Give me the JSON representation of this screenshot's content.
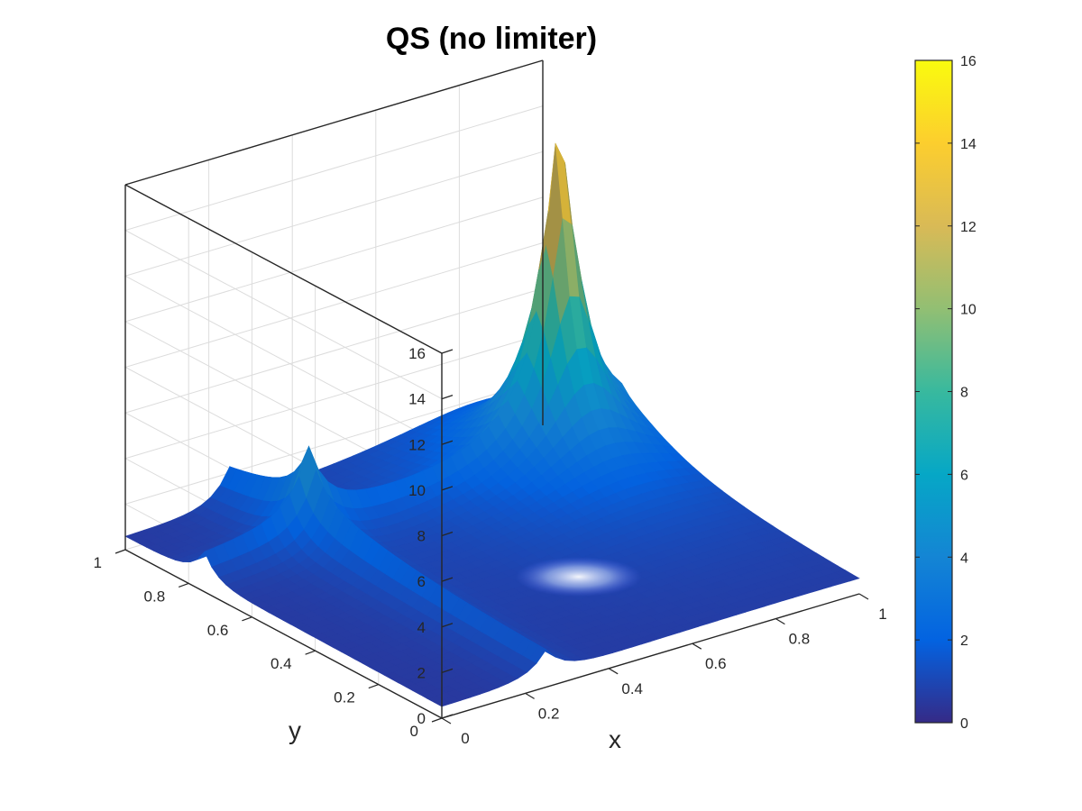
{
  "chart_data": {
    "type": "surface",
    "title": "QS (no limiter)",
    "xlabel": "x",
    "ylabel": "y",
    "zlabel": "",
    "xlim": [
      0,
      1
    ],
    "ylim": [
      0,
      1
    ],
    "zlim": [
      0,
      16
    ],
    "x_ticks": [
      "0",
      "0.2",
      "0.4",
      "0.6",
      "0.8",
      "1"
    ],
    "y_ticks": [
      "0",
      "0.2",
      "0.4",
      "0.6",
      "0.8",
      "1"
    ],
    "z_ticks": [
      "0",
      "2",
      "4",
      "6",
      "8",
      "10",
      "12",
      "14",
      "16"
    ],
    "grid": true,
    "colormap": "parula",
    "colorbar": {
      "range": [
        0,
        16
      ],
      "ticks": [
        "0",
        "2",
        "4",
        "6",
        "8",
        "10",
        "12",
        "14",
        "16"
      ],
      "colors": [
        "#352a87",
        "#0363e1",
        "#1485d4",
        "#06a7c6",
        "#38b99e",
        "#92bf73",
        "#d9ba56",
        "#fcce2e",
        "#f9fb0e"
      ]
    },
    "surface_features": {
      "peak": {
        "x": 0.85,
        "y": 0.75,
        "z": 15.5
      },
      "ridge_x": 0.25,
      "ridge_y": 0.75,
      "ridge_height": 2.5
    }
  }
}
